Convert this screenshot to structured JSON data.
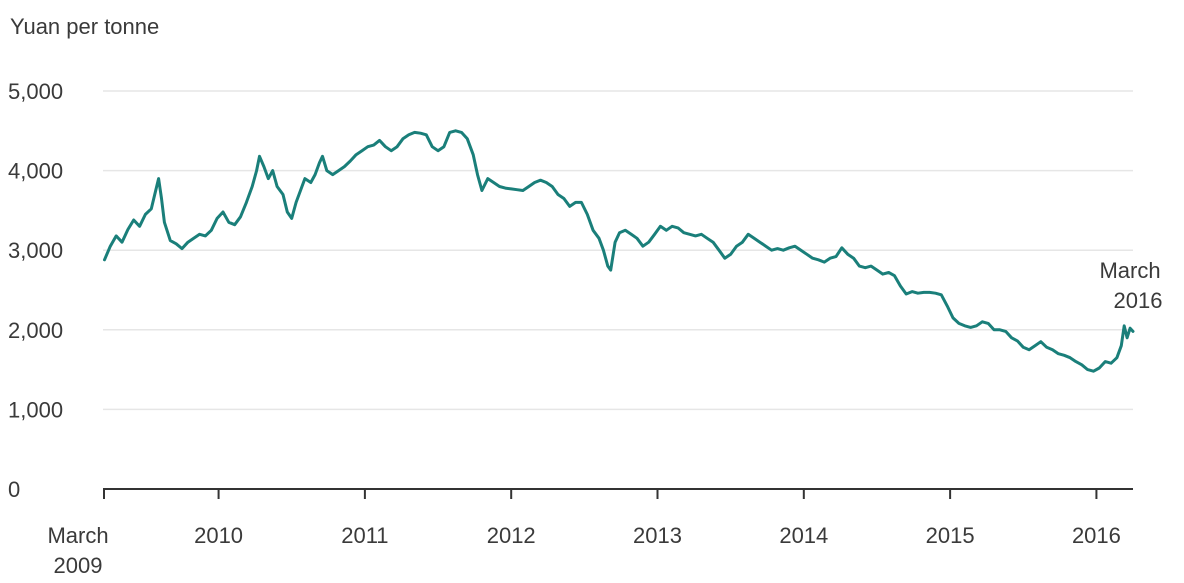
{
  "chart_data": {
    "type": "line",
    "ylabel": "Yuan per tonne",
    "ylim": [
      0,
      5000
    ],
    "yticks": [
      {
        "value": 0,
        "label": "0"
      },
      {
        "value": 1000,
        "label": "1,000"
      },
      {
        "value": 2000,
        "label": "2,000"
      },
      {
        "value": 3000,
        "label": "3,000"
      },
      {
        "value": 4000,
        "label": "4,000"
      },
      {
        "value": 5000,
        "label": "5,000"
      }
    ],
    "xlim": [
      2009.21,
      2016.25
    ],
    "xticks": [
      {
        "value": 2010.0,
        "line1": "2010",
        "line2": ""
      },
      {
        "value": 2011.0,
        "line1": "2011",
        "line2": ""
      },
      {
        "value": 2012.0,
        "line1": "2012",
        "line2": ""
      },
      {
        "value": 2013.0,
        "line1": "2013",
        "line2": ""
      },
      {
        "value": 2014.0,
        "line1": "2014",
        "line2": ""
      },
      {
        "value": 2015.0,
        "line1": "2015",
        "line2": ""
      },
      {
        "value": 2016.0,
        "line1": "2016",
        "line2": ""
      }
    ],
    "start_label": {
      "line1": "March",
      "line2": "2009"
    },
    "end_annotation": {
      "line1": "March",
      "line2": "2016"
    },
    "grid": true,
    "line_color": "#1a7f7a",
    "grid_color": "#e6e6e6",
    "axis_color": "#333333",
    "series": [
      {
        "points": [
          [
            2009.22,
            2880
          ],
          [
            2009.26,
            3050
          ],
          [
            2009.3,
            3180
          ],
          [
            2009.34,
            3100
          ],
          [
            2009.38,
            3260
          ],
          [
            2009.42,
            3380
          ],
          [
            2009.46,
            3300
          ],
          [
            2009.5,
            3450
          ],
          [
            2009.54,
            3520
          ],
          [
            2009.57,
            3750
          ],
          [
            2009.59,
            3900
          ],
          [
            2009.61,
            3650
          ],
          [
            2009.63,
            3350
          ],
          [
            2009.67,
            3120
          ],
          [
            2009.71,
            3080
          ],
          [
            2009.75,
            3020
          ],
          [
            2009.79,
            3100
          ],
          [
            2009.83,
            3150
          ],
          [
            2009.87,
            3200
          ],
          [
            2009.91,
            3180
          ],
          [
            2009.95,
            3250
          ],
          [
            2009.99,
            3400
          ],
          [
            2010.03,
            3480
          ],
          [
            2010.07,
            3350
          ],
          [
            2010.11,
            3320
          ],
          [
            2010.15,
            3420
          ],
          [
            2010.19,
            3600
          ],
          [
            2010.23,
            3800
          ],
          [
            2010.26,
            4000
          ],
          [
            2010.28,
            4180
          ],
          [
            2010.31,
            4050
          ],
          [
            2010.34,
            3900
          ],
          [
            2010.37,
            4000
          ],
          [
            2010.4,
            3800
          ],
          [
            2010.44,
            3700
          ],
          [
            2010.47,
            3480
          ],
          [
            2010.5,
            3400
          ],
          [
            2010.53,
            3600
          ],
          [
            2010.56,
            3750
          ],
          [
            2010.59,
            3900
          ],
          [
            2010.63,
            3850
          ],
          [
            2010.66,
            3950
          ],
          [
            2010.69,
            4100
          ],
          [
            2010.71,
            4180
          ],
          [
            2010.74,
            4000
          ],
          [
            2010.78,
            3950
          ],
          [
            2010.82,
            4000
          ],
          [
            2010.86,
            4050
          ],
          [
            2010.9,
            4120
          ],
          [
            2010.94,
            4200
          ],
          [
            2010.98,
            4250
          ],
          [
            2011.02,
            4300
          ],
          [
            2011.06,
            4320
          ],
          [
            2011.1,
            4380
          ],
          [
            2011.14,
            4300
          ],
          [
            2011.18,
            4250
          ],
          [
            2011.22,
            4300
          ],
          [
            2011.26,
            4400
          ],
          [
            2011.3,
            4450
          ],
          [
            2011.34,
            4480
          ],
          [
            2011.38,
            4470
          ],
          [
            2011.42,
            4450
          ],
          [
            2011.46,
            4300
          ],
          [
            2011.5,
            4250
          ],
          [
            2011.54,
            4300
          ],
          [
            2011.58,
            4480
          ],
          [
            2011.62,
            4500
          ],
          [
            2011.66,
            4480
          ],
          [
            2011.7,
            4400
          ],
          [
            2011.74,
            4200
          ],
          [
            2011.77,
            3950
          ],
          [
            2011.8,
            3750
          ],
          [
            2011.84,
            3900
          ],
          [
            2011.88,
            3850
          ],
          [
            2011.92,
            3800
          ],
          [
            2011.96,
            3780
          ],
          [
            2012.0,
            3770
          ],
          [
            2012.04,
            3760
          ],
          [
            2012.08,
            3750
          ],
          [
            2012.12,
            3800
          ],
          [
            2012.16,
            3850
          ],
          [
            2012.2,
            3880
          ],
          [
            2012.24,
            3850
          ],
          [
            2012.28,
            3800
          ],
          [
            2012.32,
            3700
          ],
          [
            2012.36,
            3650
          ],
          [
            2012.4,
            3550
          ],
          [
            2012.44,
            3600
          ],
          [
            2012.48,
            3600
          ],
          [
            2012.52,
            3450
          ],
          [
            2012.56,
            3250
          ],
          [
            2012.6,
            3150
          ],
          [
            2012.63,
            3000
          ],
          [
            2012.66,
            2800
          ],
          [
            2012.68,
            2750
          ],
          [
            2012.71,
            3100
          ],
          [
            2012.74,
            3220
          ],
          [
            2012.78,
            3250
          ],
          [
            2012.82,
            3200
          ],
          [
            2012.86,
            3150
          ],
          [
            2012.9,
            3050
          ],
          [
            2012.94,
            3100
          ],
          [
            2012.98,
            3200
          ],
          [
            2013.02,
            3300
          ],
          [
            2013.06,
            3250
          ],
          [
            2013.1,
            3300
          ],
          [
            2013.14,
            3280
          ],
          [
            2013.18,
            3220
          ],
          [
            2013.22,
            3200
          ],
          [
            2013.26,
            3180
          ],
          [
            2013.3,
            3200
          ],
          [
            2013.34,
            3150
          ],
          [
            2013.38,
            3100
          ],
          [
            2013.42,
            3000
          ],
          [
            2013.46,
            2900
          ],
          [
            2013.5,
            2950
          ],
          [
            2013.54,
            3050
          ],
          [
            2013.58,
            3100
          ],
          [
            2013.62,
            3200
          ],
          [
            2013.66,
            3150
          ],
          [
            2013.7,
            3100
          ],
          [
            2013.74,
            3050
          ],
          [
            2013.78,
            3000
          ],
          [
            2013.82,
            3020
          ],
          [
            2013.86,
            3000
          ],
          [
            2013.9,
            3030
          ],
          [
            2013.94,
            3050
          ],
          [
            2013.98,
            3000
          ],
          [
            2014.02,
            2950
          ],
          [
            2014.06,
            2900
          ],
          [
            2014.1,
            2880
          ],
          [
            2014.14,
            2850
          ],
          [
            2014.18,
            2900
          ],
          [
            2014.22,
            2920
          ],
          [
            2014.26,
            3030
          ],
          [
            2014.3,
            2950
          ],
          [
            2014.34,
            2900
          ],
          [
            2014.38,
            2800
          ],
          [
            2014.42,
            2780
          ],
          [
            2014.46,
            2800
          ],
          [
            2014.5,
            2750
          ],
          [
            2014.54,
            2700
          ],
          [
            2014.58,
            2720
          ],
          [
            2014.62,
            2680
          ],
          [
            2014.66,
            2550
          ],
          [
            2014.7,
            2450
          ],
          [
            2014.74,
            2480
          ],
          [
            2014.78,
            2460
          ],
          [
            2014.82,
            2470
          ],
          [
            2014.86,
            2470
          ],
          [
            2014.9,
            2460
          ],
          [
            2014.94,
            2440
          ],
          [
            2014.98,
            2300
          ],
          [
            2015.02,
            2150
          ],
          [
            2015.06,
            2080
          ],
          [
            2015.1,
            2050
          ],
          [
            2015.14,
            2030
          ],
          [
            2015.18,
            2050
          ],
          [
            2015.22,
            2100
          ],
          [
            2015.26,
            2080
          ],
          [
            2015.3,
            2000
          ],
          [
            2015.34,
            2000
          ],
          [
            2015.38,
            1980
          ],
          [
            2015.42,
            1900
          ],
          [
            2015.46,
            1860
          ],
          [
            2015.5,
            1780
          ],
          [
            2015.54,
            1750
          ],
          [
            2015.58,
            1800
          ],
          [
            2015.62,
            1850
          ],
          [
            2015.66,
            1780
          ],
          [
            2015.7,
            1750
          ],
          [
            2015.74,
            1700
          ],
          [
            2015.78,
            1680
          ],
          [
            2015.82,
            1650
          ],
          [
            2015.86,
            1600
          ],
          [
            2015.9,
            1560
          ],
          [
            2015.94,
            1500
          ],
          [
            2015.98,
            1480
          ],
          [
            2016.02,
            1520
          ],
          [
            2016.06,
            1600
          ],
          [
            2016.1,
            1580
          ],
          [
            2016.14,
            1650
          ],
          [
            2016.17,
            1800
          ],
          [
            2016.19,
            2050
          ],
          [
            2016.21,
            1900
          ],
          [
            2016.23,
            2020
          ],
          [
            2016.25,
            1980
          ]
        ]
      }
    ]
  }
}
